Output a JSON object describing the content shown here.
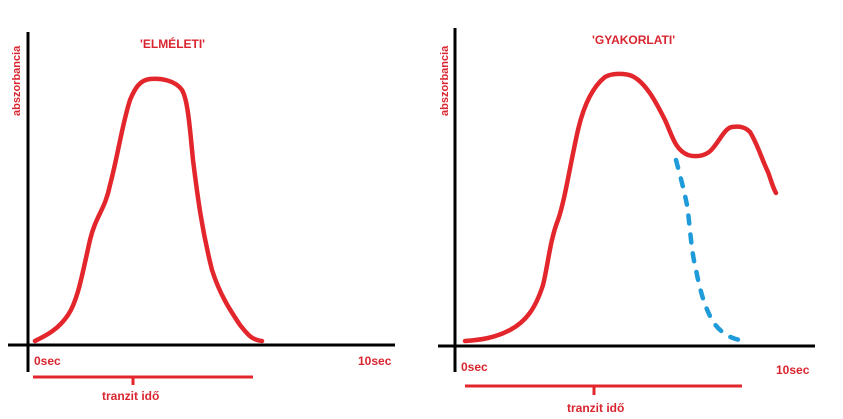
{
  "panels": [
    {
      "title": "'ELMÉLETI'",
      "ylabel": "abszorbancia",
      "x_start_label": "0sec",
      "x_end_label": "10sec",
      "transit_label": "tranzit idő"
    },
    {
      "title": "'GYAKORLATI'",
      "ylabel": "abszorbancia",
      "x_start_label": "0sec",
      "x_end_label": "10sec",
      "transit_label": "tranzit idő"
    }
  ],
  "colors": {
    "axes": "#000000",
    "curve": "#e3262c",
    "text": "#d9252f",
    "dashed": "#1e9bd8"
  }
}
